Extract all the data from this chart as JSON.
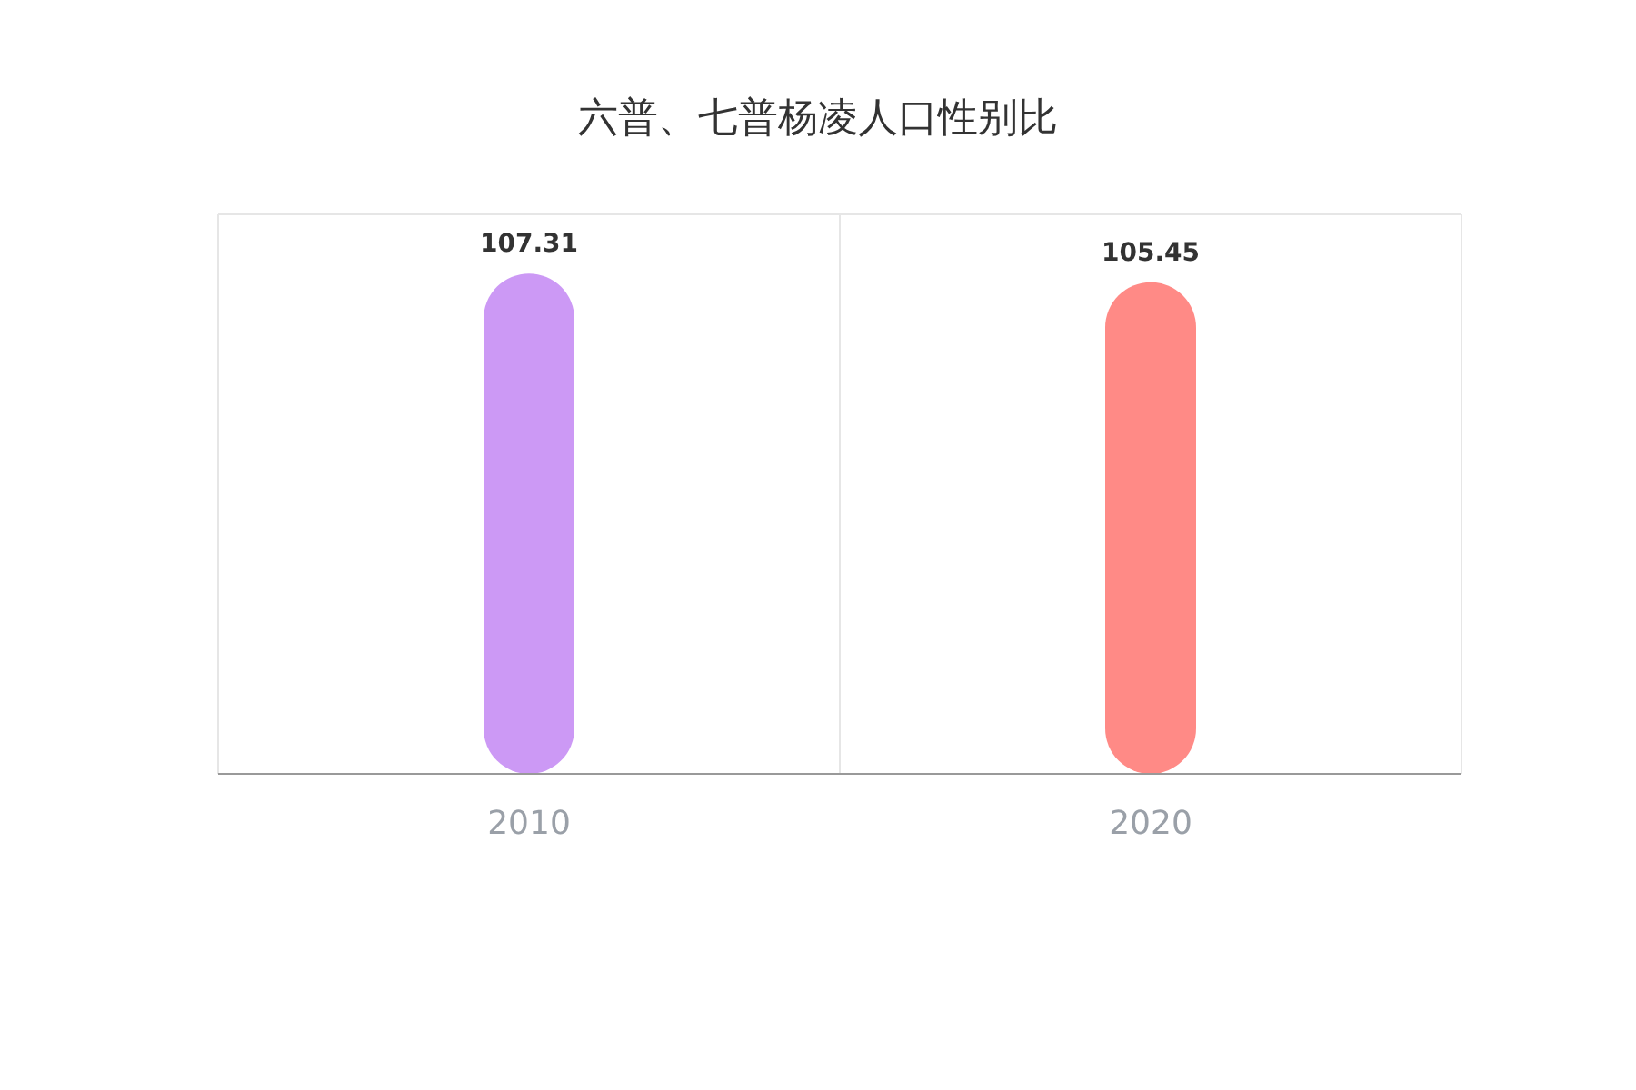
{
  "chart_data": {
    "type": "bar",
    "title": "六普、七普杨凌人口性别比",
    "categories": [
      "2010",
      "2020"
    ],
    "values": [
      107.31,
      105.45
    ],
    "colors": [
      "#cc99f5",
      "#ff8a86"
    ],
    "tick_labels": "x",
    "grid": true,
    "data_labels": true
  }
}
